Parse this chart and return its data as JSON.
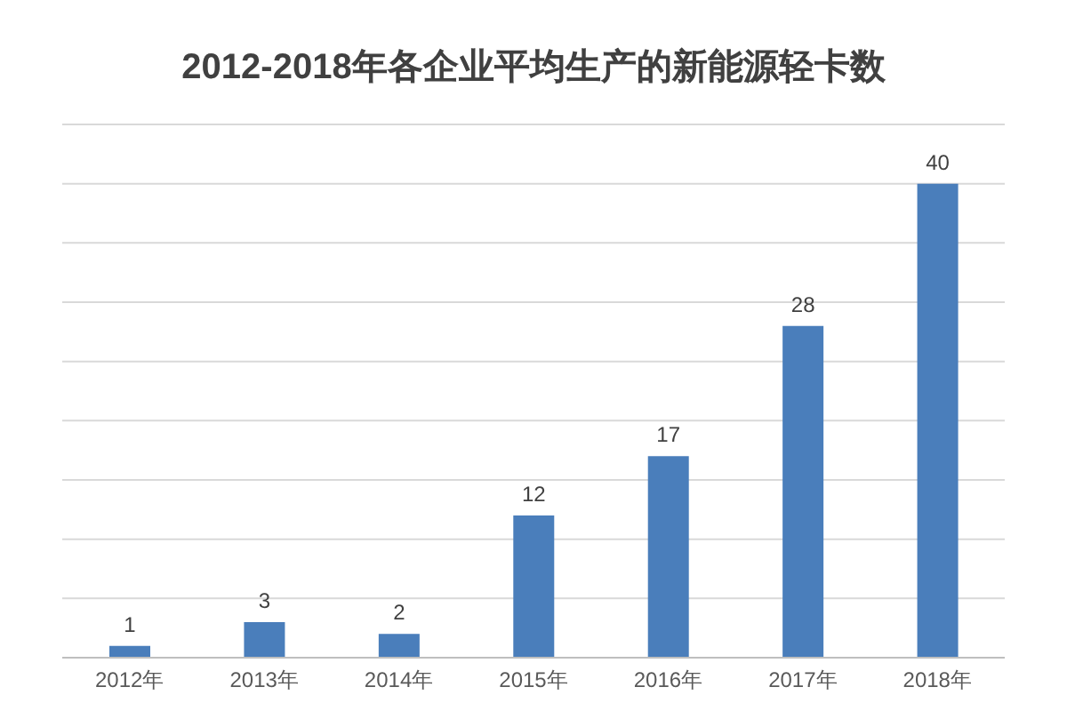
{
  "chart_data": {
    "type": "bar",
    "title": "2012-2018年各企业平均生产的新能源轻卡数",
    "categories": [
      "2012年",
      "2013年",
      "2014年",
      "2015年",
      "2016年",
      "2017年",
      "2018年"
    ],
    "series": [
      {
        "color": "#4a7ebb",
        "values": [
          1,
          3,
          2,
          12,
          17,
          28,
          40
        ]
      }
    ],
    "tick_labels": "x",
    "grid": "y",
    "data_labels": true,
    "legend": false
  }
}
